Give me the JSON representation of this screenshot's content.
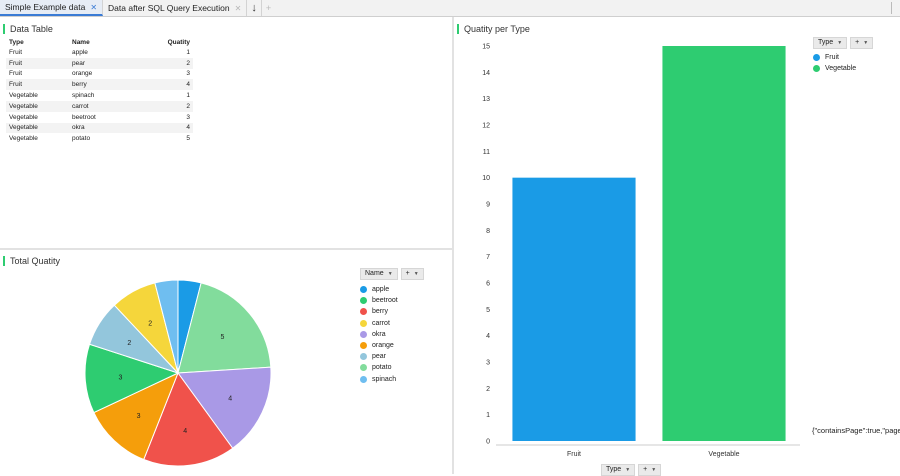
{
  "tabs": [
    {
      "label": "Simple Example data",
      "active": true
    },
    {
      "label": "Data after SQL Query Execution",
      "active": false
    }
  ],
  "data_table": {
    "title": "Data Table",
    "headers": [
      "Type",
      "Name",
      "Quatity"
    ],
    "rows": [
      [
        "Fruit",
        "apple",
        "1"
      ],
      [
        "Fruit",
        "pear",
        "2"
      ],
      [
        "Fruit",
        "orange",
        "3"
      ],
      [
        "Fruit",
        "berry",
        "4"
      ],
      [
        "Vegetable",
        "spinach",
        "1"
      ],
      [
        "Vegetable",
        "carrot",
        "2"
      ],
      [
        "Vegetable",
        "beetroot",
        "3"
      ],
      [
        "Vegetable",
        "okra",
        "4"
      ],
      [
        "Vegetable",
        "potato",
        "5"
      ]
    ]
  },
  "pie_panel": {
    "title": "Total Quatity",
    "selector_label": "Name",
    "add_label": "+"
  },
  "bar_panel": {
    "title": "Quatity per Type",
    "selector_label": "Type",
    "add_label": "+",
    "x_selector_label": "Type"
  },
  "json_text": "{\"containsPage\":true,\"page",
  "chart_data": [
    {
      "type": "pie",
      "title": "Total Quatity",
      "labels": [
        "apple",
        "beetroot",
        "berry",
        "carrot",
        "okra",
        "orange",
        "pear",
        "potato",
        "spinach"
      ],
      "colors": [
        "#1a9be6",
        "#2ecc71",
        "#f0524b",
        "#f5d63b",
        "#a999e6",
        "#f59e0b",
        "#93c6dc",
        "#82dc9c",
        "#6fbef0"
      ],
      "slices": [
        {
          "label": "spinach",
          "value": 1,
          "color": "#1a9be6"
        },
        {
          "label": "potato",
          "value": 5,
          "color": "#82dc9c"
        },
        {
          "label": "okra",
          "value": 4,
          "color": "#a999e6"
        },
        {
          "label": "berry",
          "value": 4,
          "color": "#f0524b"
        },
        {
          "label": "orange",
          "value": 3,
          "color": "#f59e0b"
        },
        {
          "label": "beetroot",
          "value": 3,
          "color": "#2ecc71"
        },
        {
          "label": "pear",
          "value": 2,
          "color": "#93c6dc"
        },
        {
          "label": "carrot",
          "value": 2,
          "color": "#f5d63b"
        },
        {
          "label": "apple",
          "value": 1,
          "color": "#6fbef0"
        }
      ],
      "legend": "right"
    },
    {
      "type": "bar",
      "title": "Quatity per Type",
      "categories": [
        "Fruit",
        "Vegetable"
      ],
      "values": [
        10,
        15
      ],
      "colors": [
        "#1a9be6",
        "#2ecc71"
      ],
      "ylim": [
        0,
        15
      ],
      "yticks": [
        0,
        1,
        2,
        3,
        4,
        5,
        6,
        7,
        8,
        9,
        10,
        11,
        12,
        13,
        14,
        15
      ],
      "legend": "top-right"
    }
  ]
}
